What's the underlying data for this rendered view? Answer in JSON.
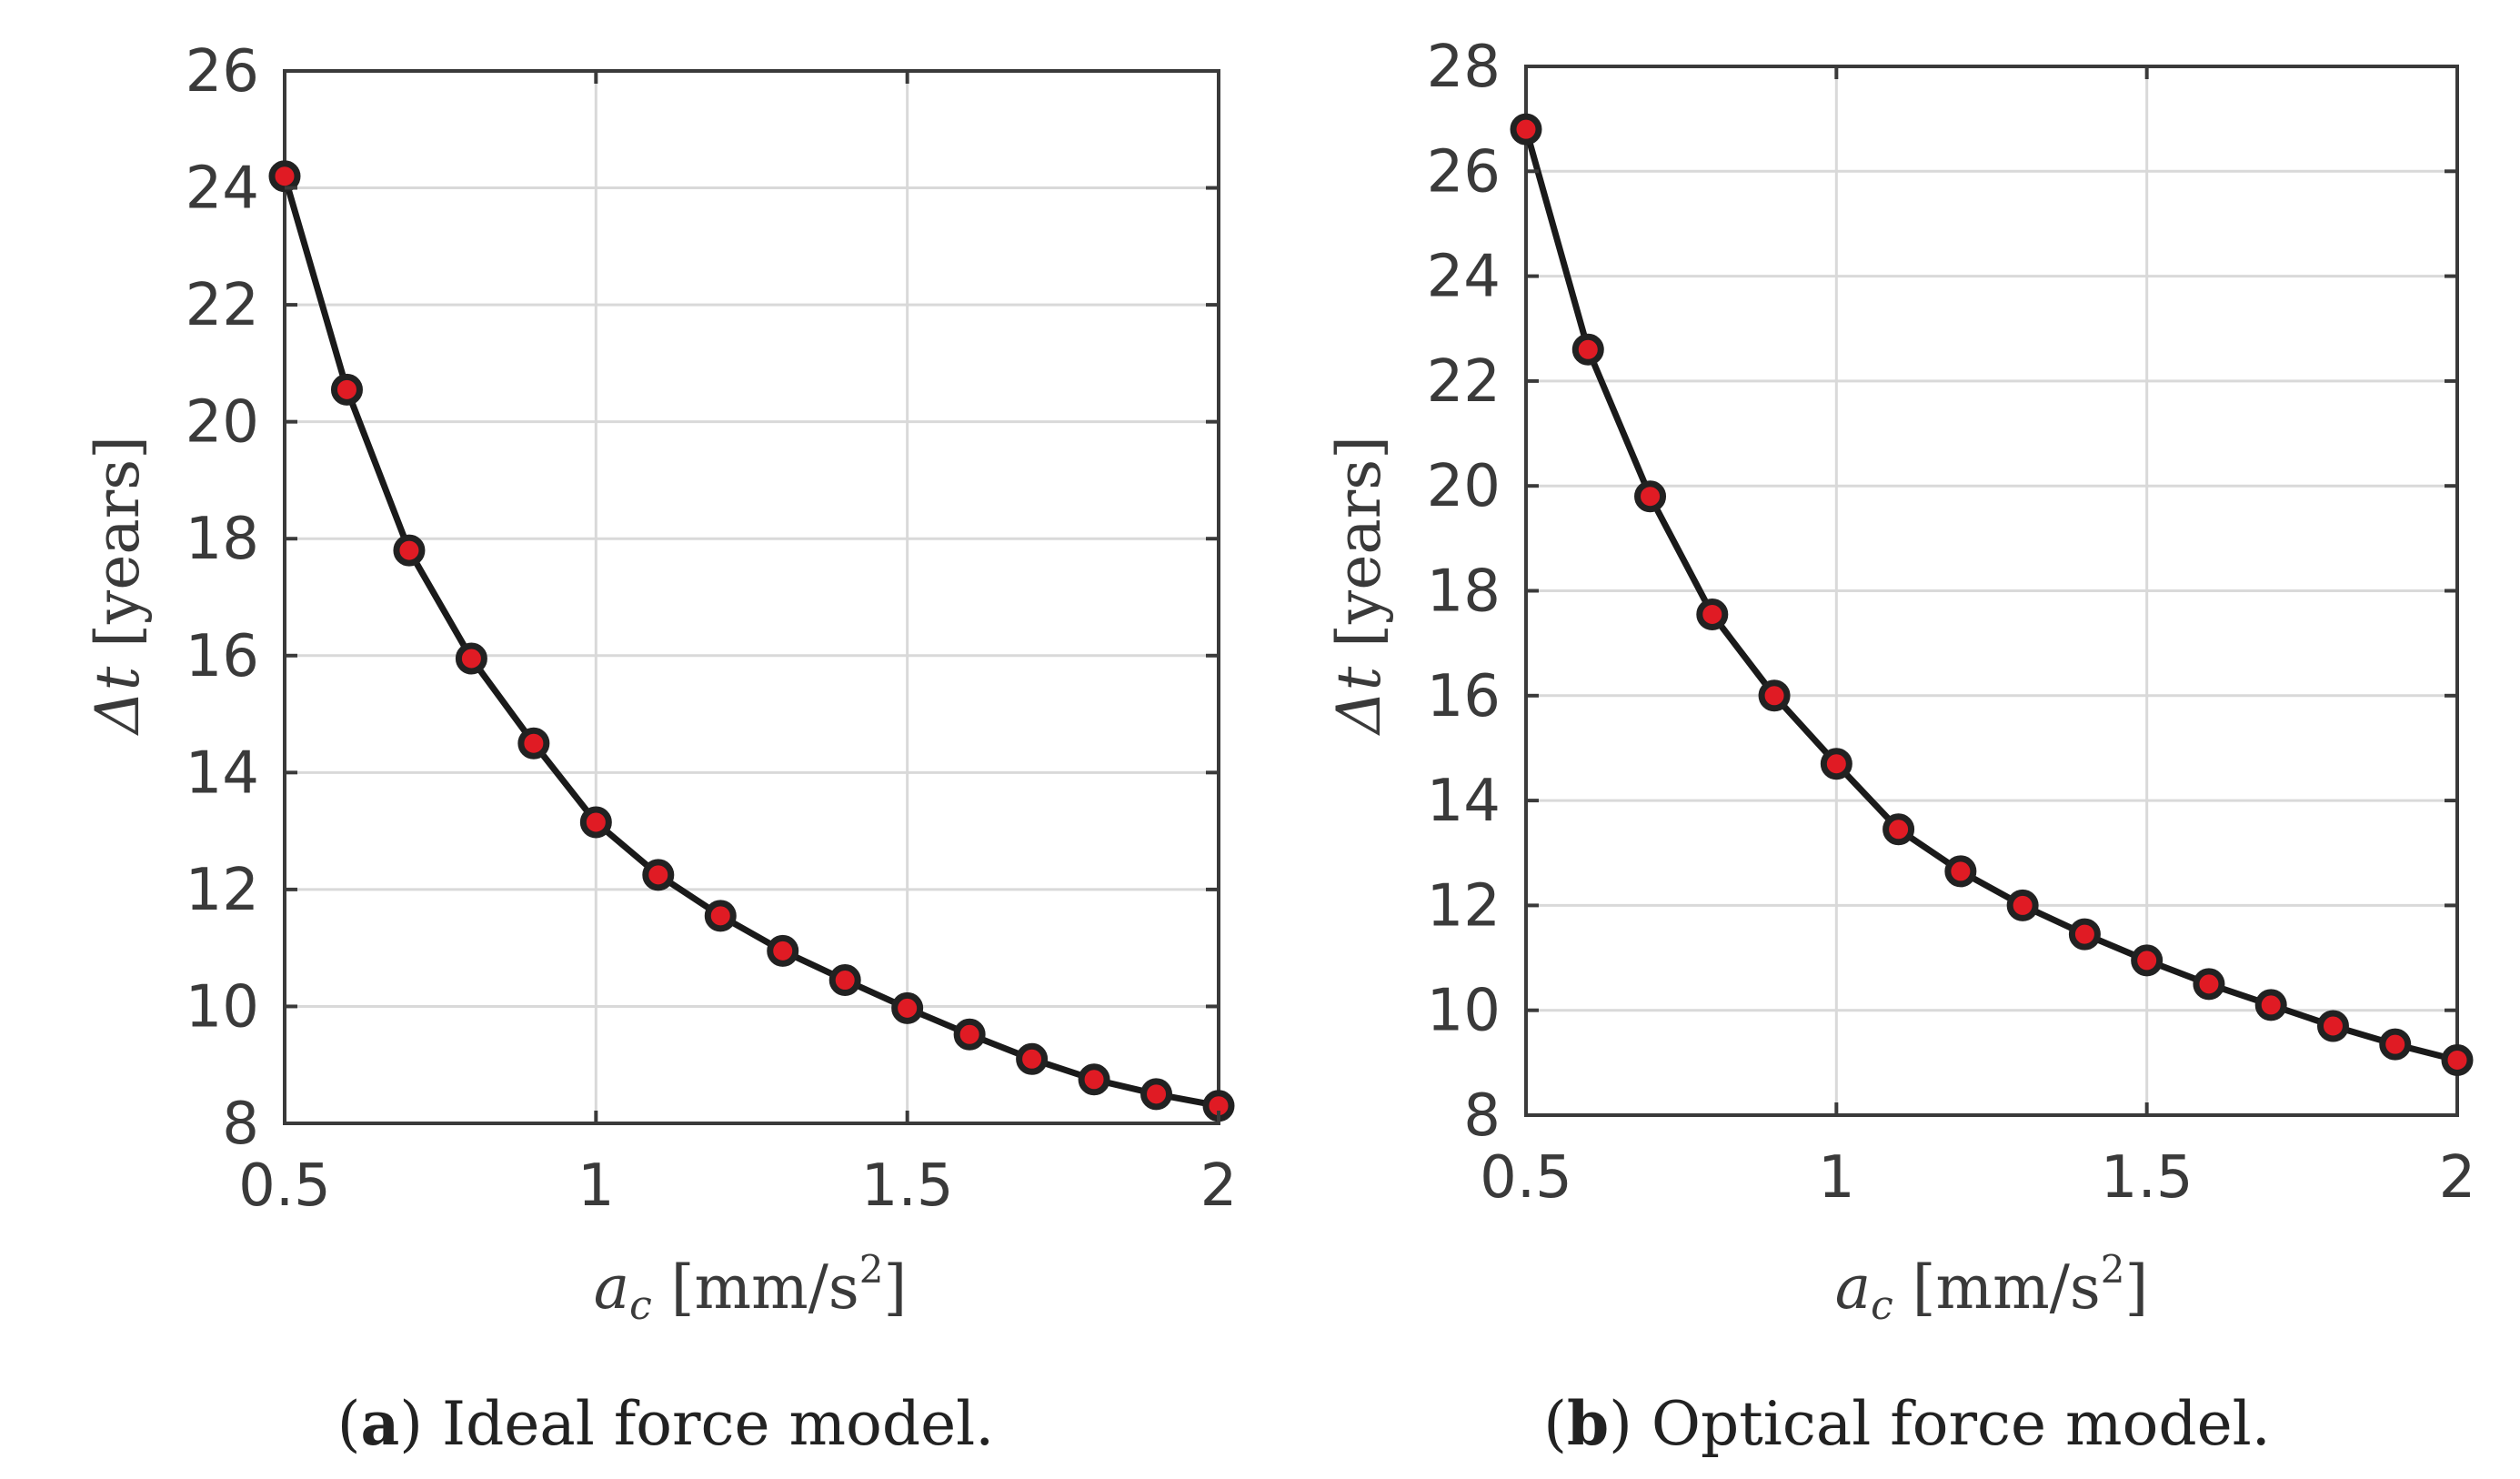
{
  "chart_data": [
    {
      "type": "line",
      "panel_letter": "a",
      "caption": "Ideal force model.",
      "x": [
        0.5,
        0.6,
        0.7,
        0.8,
        0.9,
        1.0,
        1.1,
        1.2,
        1.3,
        1.4,
        1.5,
        1.6,
        1.7,
        1.8,
        1.9,
        2.0
      ],
      "series": [
        {
          "name": "Δt",
          "values": [
            24.2,
            20.55,
            17.8,
            15.95,
            14.5,
            13.15,
            12.25,
            11.55,
            10.95,
            10.45,
            9.97,
            9.52,
            9.1,
            8.75,
            8.5,
            8.3
          ]
        }
      ],
      "xlim": [
        0.5,
        2.0
      ],
      "ylim": [
        8,
        26
      ],
      "xticks": [
        0.5,
        1,
        1.5,
        2
      ],
      "xtick_labels": [
        "0.5",
        "1",
        "1.5",
        "2"
      ],
      "yticks": [
        8,
        10,
        12,
        14,
        16,
        18,
        20,
        22,
        24,
        26
      ],
      "ytick_labels": [
        "8",
        "10",
        "12",
        "14",
        "16",
        "18",
        "20",
        "22",
        "24",
        "26"
      ],
      "xlabel_var": "a",
      "xlabel_sub": "c",
      "xlabel_unit": "[mm/s",
      "xlabel_exp": "2",
      "xlabel_close": "]",
      "ylabel_var": "Δt",
      "ylabel_unit": "[years]",
      "grid": true
    },
    {
      "type": "line",
      "panel_letter": "b",
      "caption": "Optical force model.",
      "x": [
        0.5,
        0.6,
        0.7,
        0.8,
        0.9,
        1.0,
        1.1,
        1.2,
        1.3,
        1.4,
        1.5,
        1.6,
        1.7,
        1.8,
        1.9,
        2.0
      ],
      "series": [
        {
          "name": "Δt",
          "values": [
            26.8,
            22.6,
            19.8,
            17.55,
            16.0,
            14.7,
            13.45,
            12.65,
            12.0,
            11.45,
            10.95,
            10.5,
            10.1,
            9.7,
            9.35,
            9.05
          ]
        }
      ],
      "xlim": [
        0.5,
        2.0
      ],
      "ylim": [
        8,
        28
      ],
      "xticks": [
        0.5,
        1,
        1.5,
        2
      ],
      "xtick_labels": [
        "0.5",
        "1",
        "1.5",
        "2"
      ],
      "yticks": [
        8,
        10,
        12,
        14,
        16,
        18,
        20,
        22,
        24,
        26,
        28
      ],
      "ytick_labels": [
        "8",
        "10",
        "12",
        "14",
        "16",
        "18",
        "20",
        "22",
        "24",
        "26",
        "28"
      ],
      "xlabel_var": "a",
      "xlabel_sub": "c",
      "xlabel_unit": "[mm/s",
      "xlabel_exp": "2",
      "xlabel_close": "]",
      "ylabel_var": "Δt",
      "ylabel_unit": "[years]",
      "grid": true
    }
  ],
  "colors": {
    "line": "#1a1a1a",
    "marker_fill": "#e01b24",
    "marker_edge": "#222222",
    "grid": "#d9d9d9",
    "axis": "#3a3a3a",
    "background": "#ffffff"
  }
}
